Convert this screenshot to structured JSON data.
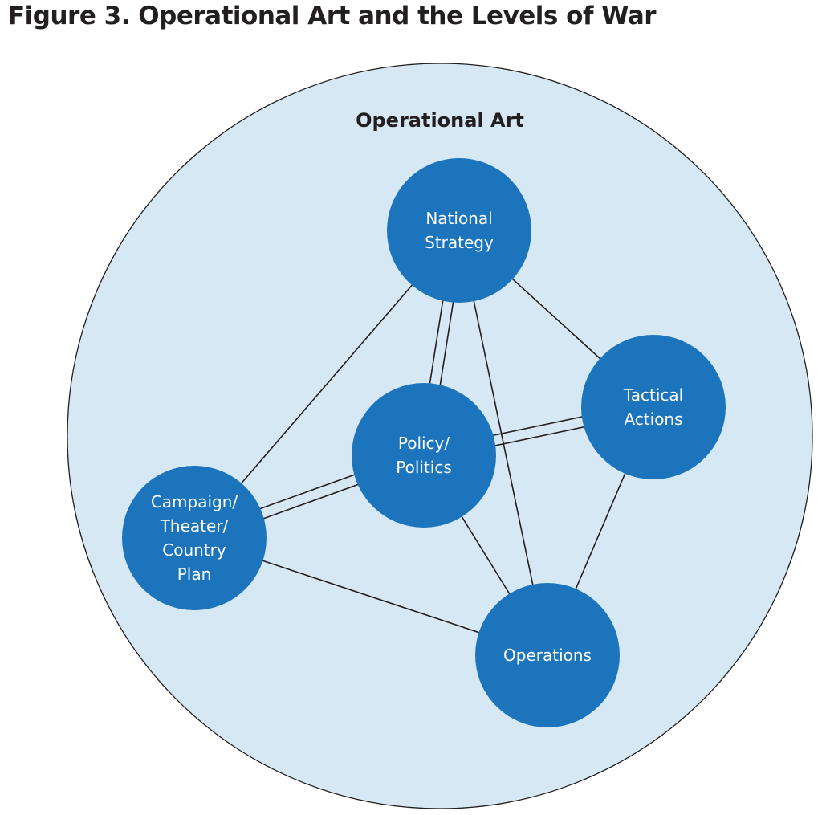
{
  "title": "Figure 3. Operational Art and the Levels of War",
  "diagram": {
    "outer_label": "Operational Art",
    "colors": {
      "outer_fill": "#d6e8f3",
      "node_fill": "#1c75bc",
      "line": "#231f20",
      "node_text": "#ffffff"
    },
    "nodes": [
      {
        "id": "national",
        "lines": [
          "National",
          "Strategy"
        ]
      },
      {
        "id": "tactical",
        "lines": [
          "Tactical",
          "Actions"
        ]
      },
      {
        "id": "policy",
        "lines": [
          "Policy/",
          "Politics"
        ]
      },
      {
        "id": "campaign",
        "lines": [
          "Campaign/",
          "Theater/",
          "Country",
          "Plan"
        ]
      },
      {
        "id": "operations",
        "lines": [
          "Operations"
        ]
      }
    ],
    "edges": [
      {
        "from": "national",
        "to": "campaign",
        "double": false
      },
      {
        "from": "national",
        "to": "policy",
        "double": true
      },
      {
        "from": "national",
        "to": "operations",
        "double": false
      },
      {
        "from": "national",
        "to": "tactical",
        "double": false
      },
      {
        "from": "policy",
        "to": "tactical",
        "double": true
      },
      {
        "from": "policy",
        "to": "campaign",
        "double": true
      },
      {
        "from": "policy",
        "to": "operations",
        "double": false
      },
      {
        "from": "campaign",
        "to": "operations",
        "double": false
      },
      {
        "from": "tactical",
        "to": "operations",
        "double": false
      }
    ]
  }
}
